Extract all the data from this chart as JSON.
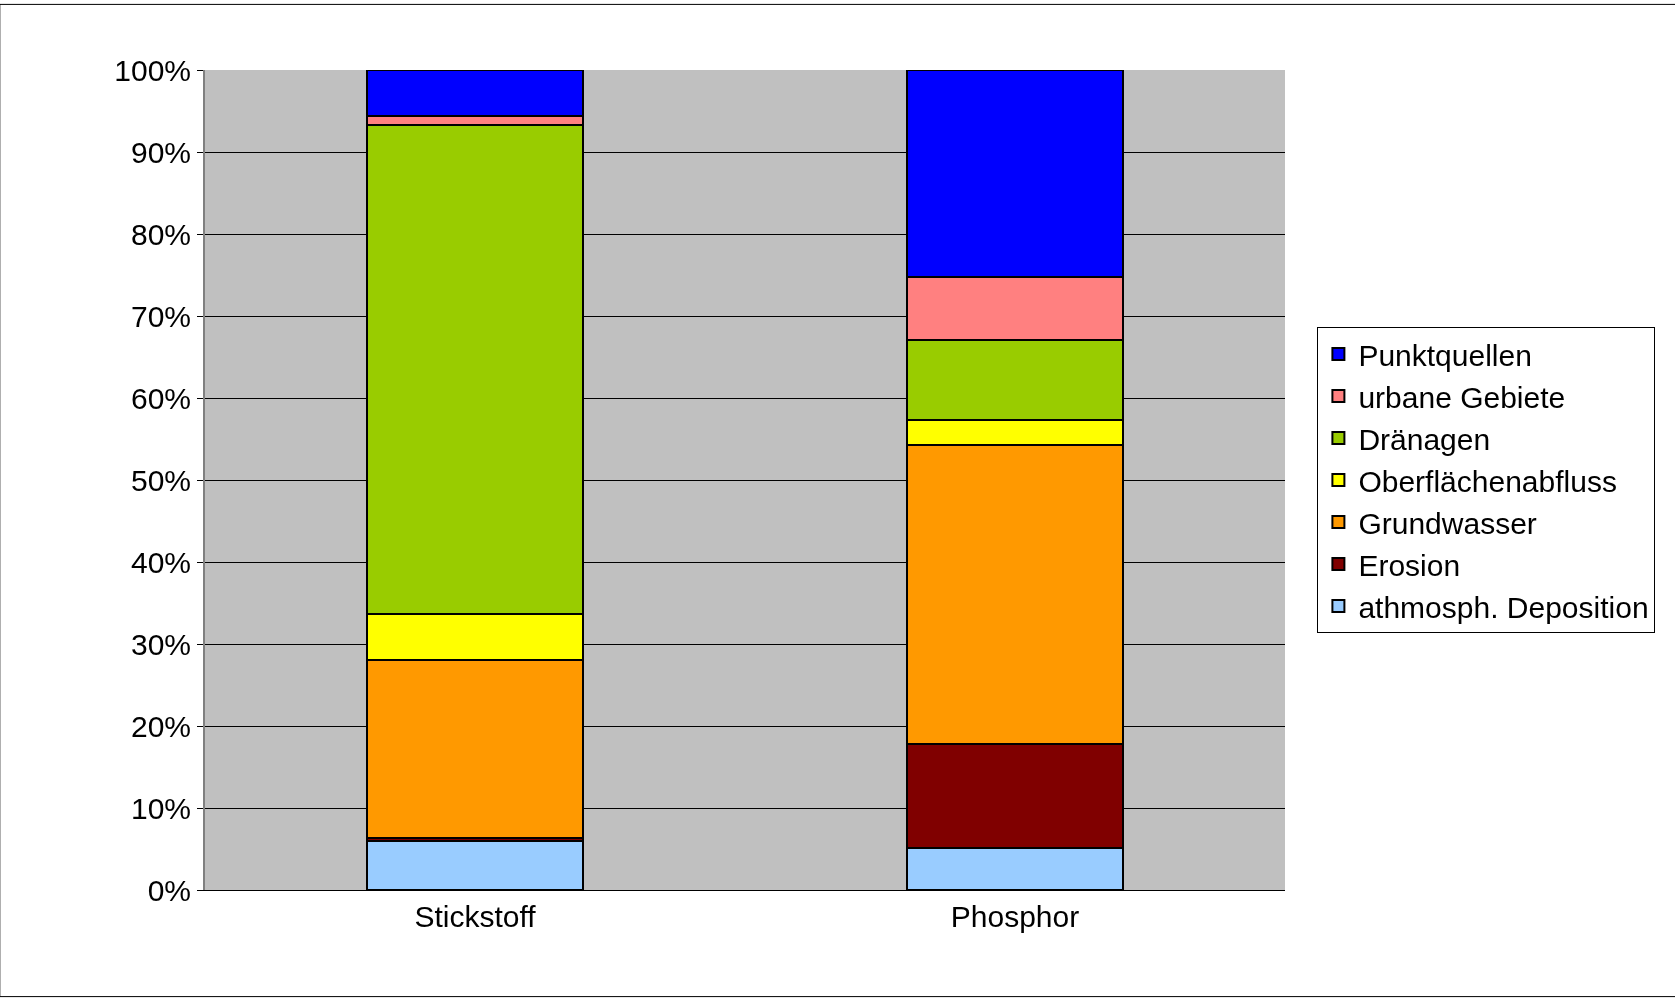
{
  "chart_data": {
    "type": "bar",
    "stacked": true,
    "categories": [
      "Stickstoff",
      "Phosphor"
    ],
    "series": [
      {
        "name": "athmosph. Deposition",
        "color": "#99ccff",
        "values": [
          6.0,
          5.1
        ]
      },
      {
        "name": "Erosion",
        "color": "#800000",
        "values": [
          0.4,
          12.7
        ]
      },
      {
        "name": "Grundwasser",
        "color": "#ff9900",
        "values": [
          21.6,
          36.5
        ]
      },
      {
        "name": "Oberflächenabfluss",
        "color": "#ffff00",
        "values": [
          5.6,
          3.0
        ]
      },
      {
        "name": "Dränagen",
        "color": "#99cc00",
        "values": [
          59.7,
          9.8
        ]
      },
      {
        "name": "urbane Gebiete",
        "color": "#ff8080",
        "values": [
          1.1,
          7.7
        ]
      },
      {
        "name": "Punktquellen",
        "color": "#0000ff",
        "values": [
          5.6,
          25.2
        ]
      }
    ],
    "ylim": [
      0,
      100
    ],
    "yticks": [
      {
        "value": 0,
        "label": "0%"
      },
      {
        "value": 10,
        "label": "10%"
      },
      {
        "value": 20,
        "label": "20%"
      },
      {
        "value": 30,
        "label": "30%"
      },
      {
        "value": 40,
        "label": "40%"
      },
      {
        "value": 50,
        "label": "50%"
      },
      {
        "value": 60,
        "label": "60%"
      },
      {
        "value": 70,
        "label": "70%"
      },
      {
        "value": 80,
        "label": "80%"
      },
      {
        "value": 90,
        "label": "90%"
      },
      {
        "value": 100,
        "label": "100%"
      }
    ],
    "grid": "y",
    "legend": "right"
  }
}
